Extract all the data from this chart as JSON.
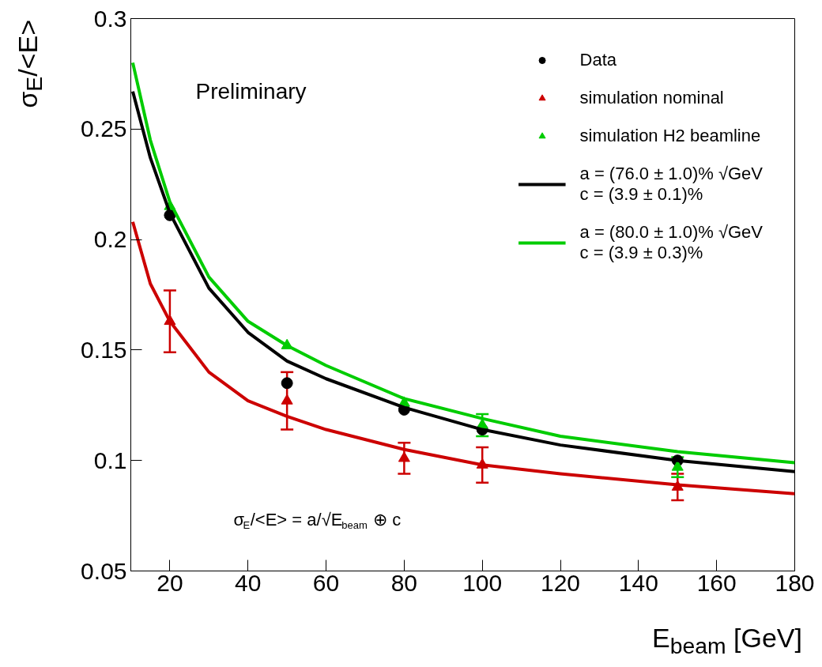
{
  "chart_data": {
    "type": "scatter",
    "xlabel": "E$_{beam}$ [GeV]",
    "ylabel": "σ$_{E}$/<E>",
    "xlim": [
      10,
      180
    ],
    "ylim": [
      0.05,
      0.3
    ],
    "xticks": [
      20,
      40,
      60,
      80,
      100,
      120,
      140,
      160,
      180
    ],
    "yticks": [
      0.05,
      0.1,
      0.15,
      0.2,
      0.25,
      0.3
    ],
    "x": [
      20,
      50,
      80,
      100,
      150
    ],
    "series": [
      {
        "name": "Data",
        "color": "#000000",
        "marker": "circle",
        "values": [
          0.211,
          0.135,
          0.123,
          0.114,
          0.1
        ]
      },
      {
        "name": "simulation nominal",
        "color": "#cc0000",
        "marker": "triangle",
        "values": [
          0.163,
          0.127,
          0.101,
          0.098,
          0.088
        ],
        "errors": [
          0.014,
          0.013,
          0.007,
          0.008,
          0.006
        ]
      },
      {
        "name": "simulation H2 beamline",
        "color": "#00cc00",
        "marker": "triangle",
        "values": [
          0.215,
          0.152,
          0.126,
          0.116,
          0.097
        ],
        "errors": [
          null,
          null,
          null,
          0.005,
          0.0045
        ]
      },
      {
        "name": "a = (76.0 ± 1.0)% √GeV\nc = (3.9 ± 0.1)%",
        "type": "line",
        "color": "#000000",
        "x": [
          10.5,
          15,
          20,
          30,
          40,
          50,
          60,
          80,
          100,
          120,
          150,
          180
        ],
        "values": [
          0.267,
          0.237,
          0.212,
          0.178,
          0.158,
          0.145,
          0.137,
          0.124,
          0.114,
          0.107,
          0.1,
          0.095
        ]
      },
      {
        "name": "a = (80.0 ± 1.0)% √GeV\nc = (3.9 ± 0.3)%",
        "type": "line",
        "color": "#00cc00",
        "x": [
          10.5,
          15,
          20,
          30,
          40,
          50,
          60,
          80,
          100,
          120,
          150,
          180
        ],
        "values": [
          0.28,
          0.245,
          0.217,
          0.183,
          0.163,
          0.152,
          0.143,
          0.128,
          0.119,
          0.111,
          0.104,
          0.099
        ]
      },
      {
        "type": "line",
        "color": "#cc0000",
        "x": [
          10.5,
          15,
          20,
          30,
          40,
          50,
          60,
          80,
          100,
          120,
          150,
          180
        ],
        "values": [
          0.208,
          0.18,
          0.163,
          0.14,
          0.127,
          0.12,
          0.114,
          0.105,
          0.098,
          0.094,
          0.089,
          0.085
        ]
      }
    ],
    "annotations": [
      "Preliminary",
      "σ$_{E}$/<E> = a/√E$_{beam}$ ⊕ c"
    ],
    "legend": "top right",
    "grid": false
  }
}
